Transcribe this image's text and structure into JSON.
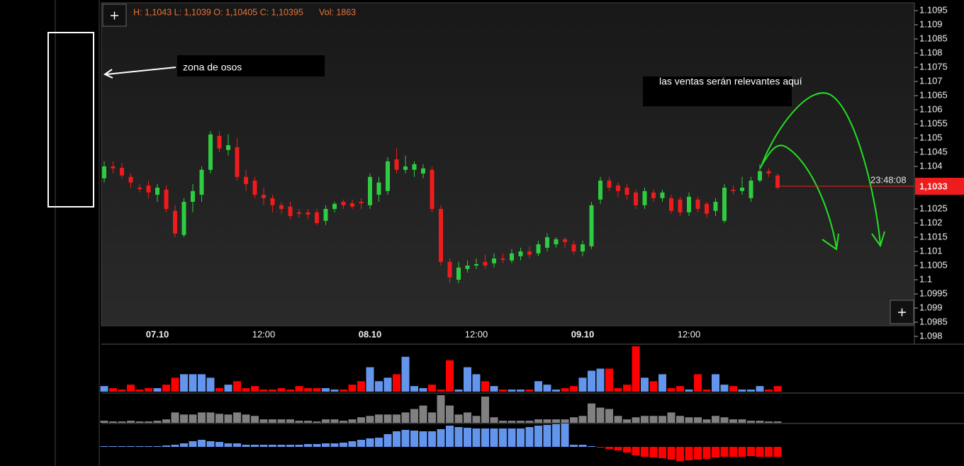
{
  "chart_data": [
    {
      "type": "candlestick",
      "ohlc_label": "H: 1,1043 L: 1,1039 O: 1,10405 C: 1,10395",
      "volume_label": "Vol: 1863",
      "categories": [
        null,
        null,
        null,
        null,
        null,
        null,
        "07.10",
        null,
        null,
        null,
        null,
        null,
        null,
        null,
        null,
        null,
        null,
        null,
        "12:00",
        null,
        null,
        null,
        null,
        null,
        null,
        null,
        null,
        null,
        null,
        null,
        "08.10",
        null,
        null,
        null,
        null,
        null,
        null,
        null,
        null,
        null,
        null,
        null,
        "12:00",
        null,
        null,
        null,
        null,
        null,
        null,
        null,
        null,
        null,
        null,
        null,
        "09.10",
        null,
        null,
        null,
        null,
        null,
        null,
        null,
        null,
        null,
        null,
        null,
        "12:00",
        null,
        null,
        null,
        null,
        null,
        null,
        null,
        null,
        null,
        null
      ],
      "open": [
        1.10358,
        1.104,
        1.10395,
        1.10363,
        1.10325,
        1.10333,
        1.103,
        1.10318,
        1.10243,
        1.10158,
        1.10275,
        1.103,
        1.10388,
        1.10508,
        1.10458,
        1.10468,
        1.10363,
        1.1035,
        1.103,
        1.10288,
        1.10263,
        1.10258,
        1.10238,
        1.10238,
        1.10238,
        1.10208,
        1.1025,
        1.10275,
        1.1027,
        1.10275,
        1.10263,
        1.103,
        1.10313,
        1.10425,
        1.10388,
        1.10388,
        1.10375,
        1.10388,
        1.1025,
        1.10063,
        1.1,
        1.10038,
        1.1005,
        1.10063,
        1.10058,
        1.10075,
        1.10068,
        1.10083,
        1.101,
        1.10093,
        1.10113,
        1.10125,
        1.10143,
        1.10125,
        1.101,
        1.10118,
        1.10283,
        1.1035,
        1.10333,
        1.10325,
        1.10308,
        1.10263,
        1.10308,
        1.10288,
        1.10288,
        1.10283,
        1.10238,
        1.10283,
        1.10268,
        1.10243,
        1.10208,
        1.10318,
        1.10313,
        1.10288,
        1.1035,
        1.10383,
        1.10368
      ],
      "high": [
        1.10418,
        1.10418,
        1.10413,
        1.10375,
        1.10338,
        1.1035,
        1.10338,
        1.10333,
        1.10263,
        1.10288,
        1.10338,
        1.104,
        1.10525,
        1.10525,
        1.10513,
        1.105,
        1.10388,
        1.10363,
        1.10325,
        1.103,
        1.10275,
        1.10275,
        1.1025,
        1.1025,
        1.1025,
        1.10263,
        1.10275,
        1.10283,
        1.10283,
        1.10288,
        1.10375,
        1.10363,
        1.10433,
        1.10463,
        1.10438,
        1.10418,
        1.10408,
        1.104,
        1.10263,
        1.10075,
        1.10063,
        1.10068,
        1.10075,
        1.10088,
        1.10093,
        1.10093,
        1.10108,
        1.10113,
        1.10118,
        1.10138,
        1.10163,
        1.1015,
        1.1015,
        1.10138,
        1.10138,
        1.10275,
        1.10363,
        1.10363,
        1.10343,
        1.10338,
        1.10318,
        1.10325,
        1.10318,
        1.10318,
        1.103,
        1.10293,
        1.10308,
        1.10293,
        1.10275,
        1.10288,
        1.10338,
        1.10333,
        1.10363,
        1.10363,
        1.10408,
        1.10393,
        1.10375
      ],
      "low": [
        1.10343,
        1.10375,
        1.10358,
        1.10325,
        1.10308,
        1.10288,
        1.10275,
        1.10238,
        1.1015,
        1.1015,
        1.10238,
        1.10275,
        1.10375,
        1.1045,
        1.10438,
        1.1035,
        1.10313,
        1.10288,
        1.10263,
        1.10238,
        1.10233,
        1.10213,
        1.10218,
        1.10213,
        1.10193,
        1.10193,
        1.10238,
        1.1025,
        1.1025,
        1.1025,
        1.1025,
        1.10275,
        1.103,
        1.10375,
        1.10375,
        1.10363,
        1.10358,
        1.10238,
        1.1005,
        1.09988,
        1.09988,
        1.10025,
        1.10038,
        1.10038,
        1.10043,
        1.10058,
        1.10058,
        1.10068,
        1.10075,
        1.10083,
        1.101,
        1.10113,
        1.10113,
        1.10088,
        1.10083,
        1.10108,
        1.10268,
        1.10313,
        1.10293,
        1.10283,
        1.1025,
        1.1025,
        1.10275,
        1.10275,
        1.10233,
        1.10225,
        1.10225,
        1.10238,
        1.10218,
        1.10225,
        1.102,
        1.103,
        1.103,
        1.10275,
        1.10343,
        1.10363,
        1.10318
      ],
      "close": [
        1.104,
        1.10393,
        1.10368,
        1.10343,
        1.1032,
        1.10308,
        1.10325,
        1.1025,
        1.10163,
        1.10275,
        1.10313,
        1.10388,
        1.10513,
        1.10463,
        1.10475,
        1.10363,
        1.10338,
        1.103,
        1.10288,
        1.10263,
        1.1025,
        1.10225,
        1.10233,
        1.1023,
        1.102,
        1.1025,
        1.10268,
        1.10263,
        1.10258,
        1.1027,
        1.10363,
        1.10343,
        1.10418,
        1.10388,
        1.104,
        1.10408,
        1.10393,
        1.1025,
        1.10063,
        1.10008,
        1.10043,
        1.1005,
        1.10055,
        1.1005,
        1.10075,
        1.1007,
        1.10093,
        1.101,
        1.10088,
        1.10125,
        1.1015,
        1.10143,
        1.10133,
        1.101,
        1.10125,
        1.10263,
        1.1035,
        1.10325,
        1.10313,
        1.103,
        1.10263,
        1.10313,
        1.10288,
        1.10308,
        1.10243,
        1.10238,
        1.10293,
        1.1025,
        1.10233,
        1.10275,
        1.10325,
        1.10313,
        1.10325,
        1.1035,
        1.10383,
        1.10375,
        1.10325
      ],
      "up_color": "#2ecc40",
      "down_color": "#ee1c1c",
      "ylim": [
        1.09775,
        1.10975
      ],
      "yticks": [
        1.1095,
        1.109,
        1.1085,
        1.108,
        1.1075,
        1.107,
        1.1065,
        1.106,
        1.1055,
        1.105,
        1.1045,
        1.104,
        1.1025,
        1.102,
        1.1015,
        1.101,
        1.1005,
        1.1,
        1.0995,
        1.099,
        1.0985,
        1.098
      ],
      "last_price": {
        "value": 1.1033,
        "label": "1,1033"
      },
      "countdown": "23:48:08",
      "annotations": [
        "zona de osos",
        "las ventas serán relevantes aquí"
      ]
    },
    {
      "type": "volume",
      "up_color": "#6495ed",
      "down_color": "#ff0000",
      "ylim": [
        0,
        65
      ],
      "values": [
        8,
        5,
        3,
        10,
        3,
        5,
        5,
        10,
        20,
        25,
        25,
        25,
        20,
        5,
        10,
        15,
        5,
        8,
        3,
        3,
        5,
        3,
        8,
        5,
        5,
        5,
        3,
        3,
        10,
        15,
        35,
        15,
        20,
        25,
        50,
        8,
        5,
        10,
        3,
        45,
        3,
        35,
        25,
        15,
        8,
        3,
        3,
        3,
        3,
        15,
        10,
        3,
        5,
        8,
        20,
        30,
        33,
        33,
        5,
        10,
        65,
        20,
        15,
        25,
        5,
        8,
        3,
        25,
        3,
        25,
        10,
        8,
        3,
        3,
        8,
        3,
        8
      ]
    },
    {
      "type": "bar",
      "color": "#808080",
      "ylim": [
        0,
        40
      ],
      "values": [
        3,
        2,
        2,
        3,
        2,
        2,
        3,
        5,
        15,
        12,
        12,
        15,
        15,
        13,
        12,
        15,
        12,
        10,
        5,
        5,
        5,
        5,
        3,
        3,
        2,
        5,
        5,
        3,
        5,
        8,
        10,
        12,
        12,
        12,
        15,
        20,
        25,
        15,
        40,
        25,
        12,
        15,
        10,
        38,
        8,
        3,
        3,
        3,
        3,
        5,
        5,
        5,
        5,
        8,
        10,
        28,
        22,
        20,
        10,
        5,
        8,
        10,
        10,
        10,
        15,
        10,
        8,
        8,
        5,
        10,
        8,
        5,
        5,
        3,
        3,
        2,
        2
      ]
    },
    {
      "type": "delta",
      "up_color": "#6495ed",
      "down_color": "#ff0000",
      "ylim": [
        -25,
        31
      ],
      "values": [
        1,
        1,
        1,
        1,
        1,
        1,
        1,
        2,
        3,
        5,
        8,
        10,
        8,
        7,
        5,
        5,
        3,
        3,
        3,
        3,
        3,
        3,
        3,
        4,
        4,
        5,
        5,
        6,
        8,
        10,
        12,
        13,
        18,
        22,
        24,
        23,
        22,
        22,
        25,
        30,
        28,
        27,
        26,
        26,
        26,
        26,
        26,
        26,
        28,
        30,
        31,
        32,
        33,
        3,
        3,
        1,
        -1,
        -3,
        -5,
        -8,
        -12,
        -14,
        -15,
        -16,
        -18,
        -20,
        -19,
        -18,
        -17,
        -15,
        -14,
        -14,
        -14,
        -13,
        -14,
        -14,
        -14
      ]
    }
  ]
}
